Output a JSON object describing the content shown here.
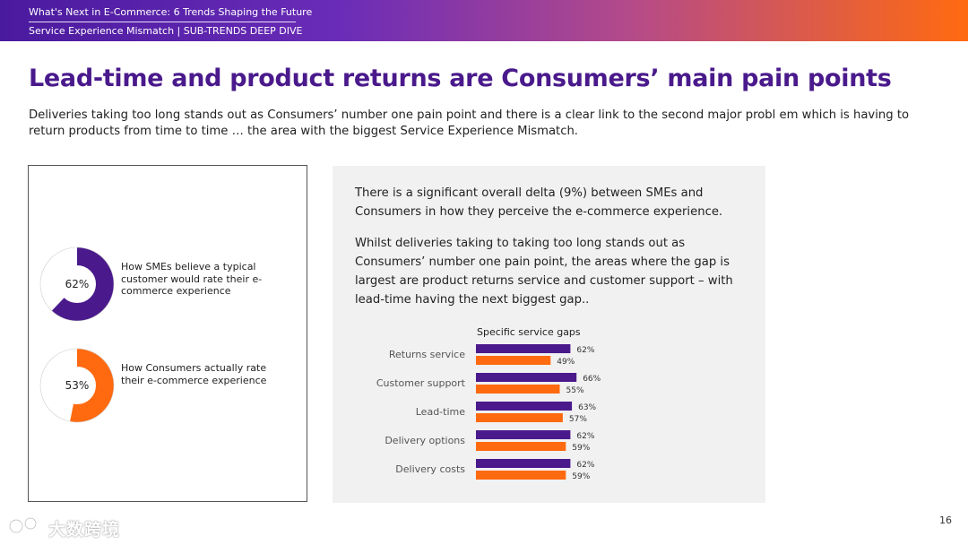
{
  "header": {
    "line1": "What's Next in E-Commerce: 6 Trends Shaping the Future",
    "line2": "Service Experience Mismatch | SUB-TRENDS DEEP DIVE"
  },
  "title": "Lead-time and product returns are Consumers’ main pain points",
  "intro": "Deliveries taking too long stands out as Consumers’ number one pain point and there is a clear link to the second major probl em which is having to return products from time to time … the area with the biggest Service Experience Mismatch.",
  "donuts": [
    {
      "value": 62,
      "label_text": "62%",
      "color": "#4a1a8c",
      "caption": "How SMEs believe a typical customer would rate their e-commerce experience"
    },
    {
      "value": 53,
      "label_text": "53%",
      "color": "#ff6a10",
      "caption": "How Consumers actually rate their e-commerce experience"
    }
  ],
  "paragraphs": [
    "There is a significant overall delta (9%) between SMEs and Consumers in how they perceive the  e-commerce experience.",
    "Whilst deliveries taking to taking too long stands out as Consumers’ number one pain point, the areas where the gap is largest are product returns service and customer support – with lead-time having the next biggest gap.."
  ],
  "chart_data": {
    "type": "bar",
    "orientation": "horizontal",
    "title": "Specific service gaps",
    "categories": [
      "Returns service",
      "Customer support",
      "Lead-time",
      "Delivery options",
      "Delivery costs"
    ],
    "series": [
      {
        "values": [
          62,
          66,
          63,
          62,
          62
        ],
        "labels": [
          "62%",
          "66%",
          "63%",
          "62%",
          "62%"
        ],
        "color": "#4a1a8c"
      },
      {
        "values": [
          49,
          55,
          57,
          59,
          59
        ],
        "labels": [
          "49%",
          "55%",
          "57%",
          "59%",
          "59%"
        ],
        "color": "#ff6a10"
      }
    ]
  },
  "page_number": "16",
  "watermark": "大数跨境"
}
